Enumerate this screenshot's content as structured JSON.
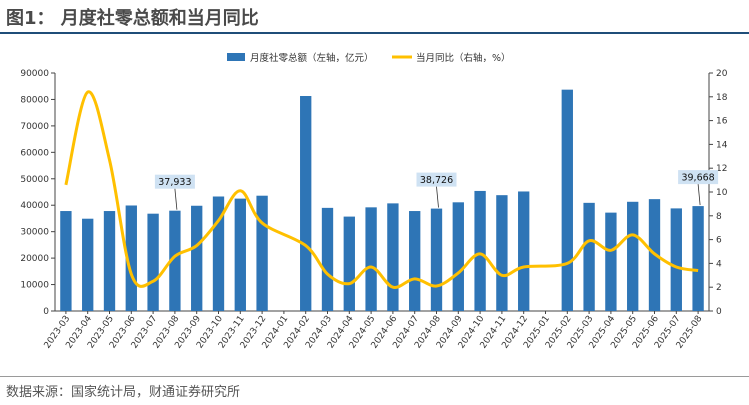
{
  "figure": {
    "title": "图1：  月度社零总额和当月同比",
    "source": "数据来源：国家统计局，财通证券研究所"
  },
  "chart_data": {
    "type": "bar+line",
    "categories": [
      "2023-03",
      "2023-04",
      "2023-05",
      "2023-06",
      "2023-07",
      "2023-08",
      "2023-09",
      "2023-10",
      "2023-11",
      "2023-12",
      "2024-01",
      "2024-02",
      "2024-03",
      "2024-04",
      "2024-05",
      "2024-06",
      "2024-07",
      "2024-08",
      "2024-09",
      "2024-10",
      "2024-11",
      "2024-12",
      "2025-01",
      "2025-02",
      "2025-03",
      "2025-04",
      "2025-05",
      "2025-06",
      "2025-07",
      "2025-08"
    ],
    "series": [
      {
        "name": "月度社零总额（左轴，亿元）",
        "type": "bar",
        "axis": "left",
        "color": "#2e75b6",
        "values": [
          37800,
          34900,
          37800,
          39900,
          36800,
          37933,
          39800,
          43300,
          42500,
          43600,
          null,
          81300,
          39000,
          35700,
          39200,
          40700,
          37800,
          38726,
          41100,
          45400,
          43800,
          45200,
          null,
          83700,
          40900,
          37200,
          41300,
          42300,
          38800,
          39668
        ]
      },
      {
        "name": "当月同比（右轴，%）",
        "type": "line",
        "axis": "right",
        "color": "#ffc000",
        "values": [
          10.6,
          18.4,
          12.7,
          3.1,
          2.5,
          4.6,
          5.5,
          7.6,
          10.1,
          7.4,
          null,
          5.5,
          3.1,
          2.3,
          3.7,
          2.0,
          2.7,
          2.1,
          3.2,
          4.8,
          3.0,
          3.7,
          null,
          4.0,
          5.9,
          5.1,
          6.4,
          4.8,
          3.7,
          3.4
        ]
      }
    ],
    "y_left": {
      "min": 0,
      "max": 90000,
      "ticks": [
        "0",
        "10000",
        "20000",
        "30000",
        "40000",
        "50000",
        "60000",
        "70000",
        "80000",
        "90000"
      ]
    },
    "y_right": {
      "min": 0,
      "max": 20,
      "ticks": [
        "0",
        "2",
        "4",
        "6",
        "8",
        "10",
        "12",
        "14",
        "16",
        "18",
        "20"
      ]
    },
    "annotations": [
      {
        "category": "2023-08",
        "label": "37,933"
      },
      {
        "category": "2024-08",
        "label": "38,726"
      },
      {
        "category": "2025-08",
        "label": "39,668"
      }
    ],
    "legend_position": "top",
    "grid": false
  }
}
